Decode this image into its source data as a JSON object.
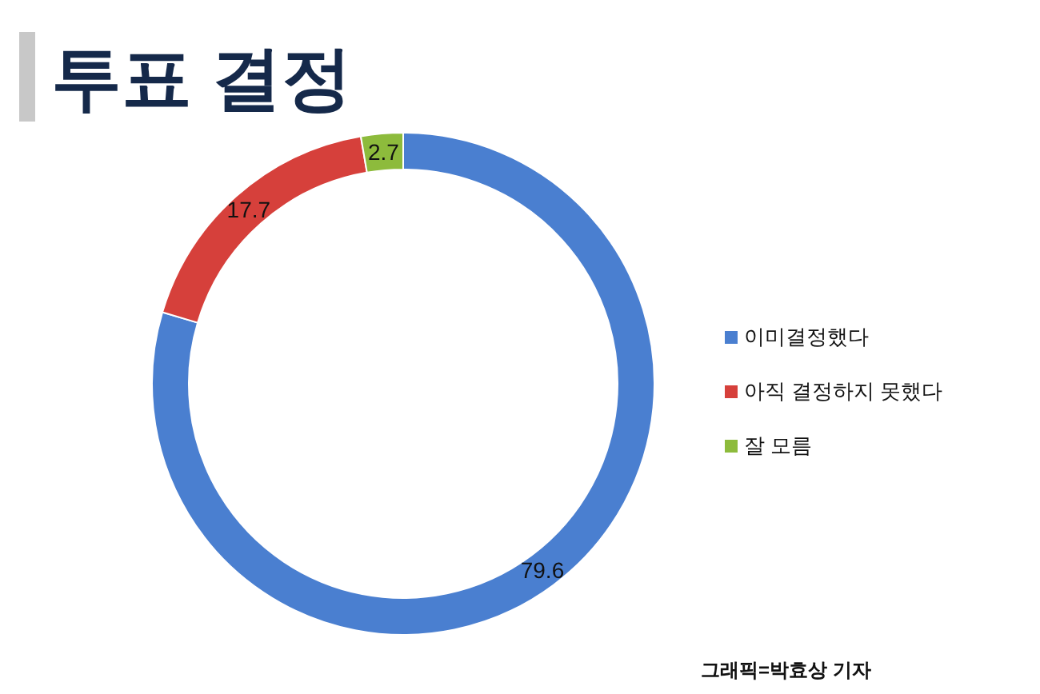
{
  "chart_data": {
    "type": "donut",
    "title": "투표 결정",
    "categories": [
      "이미결정했다",
      "아직 결정하지 못했다",
      "잘 모름"
    ],
    "values": [
      79.6,
      17.7,
      2.7
    ],
    "colors": [
      "#4a7fd0",
      "#d6403b",
      "#8dbb3c"
    ],
    "data_labels": true,
    "legend": "right",
    "annotations": [
      "그래픽=박효상 기자"
    ]
  }
}
